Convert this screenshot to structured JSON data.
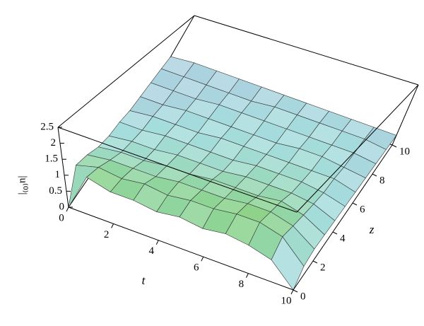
{
  "chart_data": {
    "type": "surface",
    "xlabel": "t",
    "ylabel": "z",
    "zlabel": "|u⁽⁰⁾|",
    "x": [
      0,
      1,
      2,
      3,
      4,
      5,
      6,
      7,
      8,
      9,
      10
    ],
    "y": [
      0,
      1,
      2,
      3,
      4,
      5,
      6,
      7,
      8,
      9,
      10
    ],
    "z": [
      [
        0,
        0.9,
        0.8,
        0.6,
        0.5,
        0.5,
        0.4,
        0.4,
        0.4,
        0.4,
        0.3
      ],
      [
        1.2,
        1.1,
        0.9,
        0.7,
        0.6,
        0.5,
        0.5,
        0.4,
        0.4,
        0.4,
        0.4
      ],
      [
        1.0,
        1.0,
        0.9,
        0.7,
        0.6,
        0.6,
        0.5,
        0.5,
        0.4,
        0.4,
        0.4
      ],
      [
        1.0,
        1.1,
        0.9,
        0.8,
        0.7,
        0.6,
        0.5,
        0.5,
        0.5,
        0.4,
        0.4
      ],
      [
        0.9,
        1.0,
        1.0,
        0.8,
        0.7,
        0.6,
        0.6,
        0.5,
        0.5,
        0.4,
        0.4
      ],
      [
        1.0,
        1.1,
        1.0,
        0.9,
        0.7,
        0.6,
        0.6,
        0.5,
        0.5,
        0.5,
        0.4
      ],
      [
        0.9,
        1.1,
        1.0,
        0.9,
        0.8,
        0.7,
        0.6,
        0.5,
        0.5,
        0.5,
        0.4
      ],
      [
        1.0,
        1.2,
        1.1,
        0.9,
        0.8,
        0.7,
        0.6,
        0.6,
        0.5,
        0.5,
        0.4
      ],
      [
        0.9,
        1.2,
        1.1,
        1.0,
        0.8,
        0.7,
        0.6,
        0.6,
        0.5,
        0.5,
        0.4
      ],
      [
        0.7,
        1.0,
        0.9,
        0.8,
        0.7,
        0.6,
        0.6,
        0.5,
        0.5,
        0.5,
        0.4
      ],
      [
        0,
        0.3,
        0.4,
        0.4,
        0.4,
        0.4,
        0.4,
        0.4,
        0.4,
        0.4,
        0.4
      ]
    ],
    "xlim": [
      0,
      10
    ],
    "xticks": [
      0,
      2,
      4,
      6,
      8,
      10
    ],
    "ylim": [
      0,
      10
    ],
    "yticks": [
      0,
      2,
      4,
      6,
      8,
      10
    ],
    "zlim": [
      0,
      2.5
    ],
    "zticks": [
      0,
      0.5,
      1,
      1.5,
      2,
      2.5
    ]
  }
}
